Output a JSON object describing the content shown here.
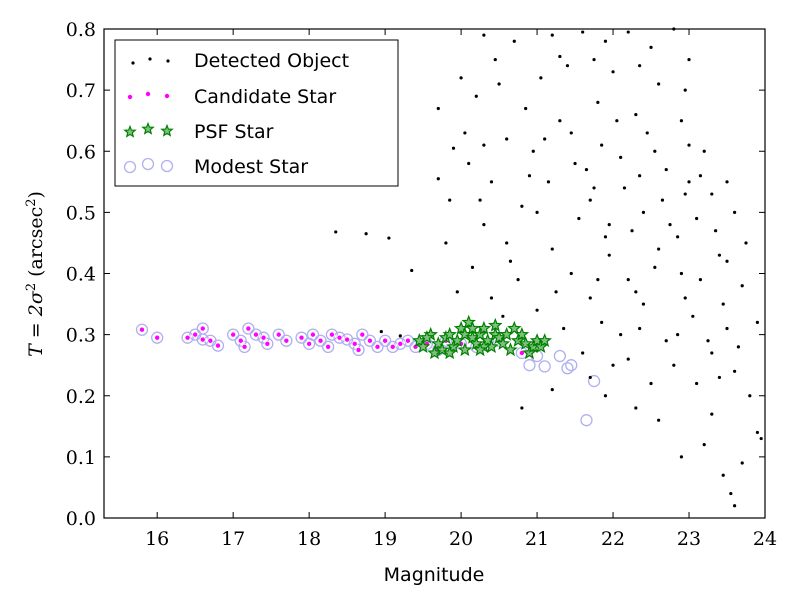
{
  "chart_data": {
    "type": "scatter",
    "xlabel": "Magnitude",
    "ylabel_prefix": "T = 2σ",
    "ylabel_unit": "(arcsec",
    "ylabel_suffix": ")",
    "xlim": [
      15.3,
      24.0
    ],
    "ylim": [
      0.0,
      0.8
    ],
    "xticks": [
      "16",
      "17",
      "18",
      "19",
      "20",
      "21",
      "22",
      "23",
      "24"
    ],
    "yticks": [
      "0.0",
      "0.1",
      "0.2",
      "0.3",
      "0.4",
      "0.5",
      "0.6",
      "0.7",
      "0.8"
    ],
    "grid": false,
    "legend": "top-left",
    "colors": {
      "detected": "#000000",
      "candidate": "#ff00ff",
      "psf_star": "#008000",
      "modest": "#b0b0f0"
    },
    "series": [
      {
        "name": "Detected Object",
        "marker": "dot",
        "points": [
          [
            18.35,
            0.468
          ],
          [
            18.75,
            0.465
          ],
          [
            19.05,
            0.458
          ],
          [
            19.35,
            0.405
          ],
          [
            19.7,
            0.555
          ],
          [
            19.9,
            0.605
          ],
          [
            19.2,
            0.298
          ],
          [
            18.95,
            0.305
          ],
          [
            20.3,
            0.79
          ],
          [
            20.7,
            0.78
          ],
          [
            21.2,
            0.79
          ],
          [
            21.6,
            0.795
          ],
          [
            21.9,
            0.78
          ],
          [
            22.2,
            0.795
          ],
          [
            22.5,
            0.77
          ],
          [
            22.8,
            0.8
          ],
          [
            21.05,
            0.72
          ],
          [
            21.4,
            0.74
          ],
          [
            22.0,
            0.73
          ],
          [
            22.6,
            0.71
          ],
          [
            23.0,
            0.75
          ],
          [
            21.3,
            0.65
          ],
          [
            21.8,
            0.68
          ],
          [
            22.3,
            0.66
          ],
          [
            22.9,
            0.65
          ],
          [
            23.2,
            0.6
          ],
          [
            23.5,
            0.55
          ],
          [
            23.6,
            0.5
          ],
          [
            23.3,
            0.53
          ],
          [
            20.85,
            0.67
          ],
          [
            20.5,
            0.71
          ],
          [
            20.2,
            0.69
          ],
          [
            20.1,
            0.58
          ],
          [
            20.4,
            0.55
          ],
          [
            20.9,
            0.56
          ],
          [
            21.5,
            0.58
          ],
          [
            22.1,
            0.59
          ],
          [
            22.7,
            0.57
          ],
          [
            21.0,
            0.5
          ],
          [
            21.7,
            0.52
          ],
          [
            22.4,
            0.5
          ],
          [
            23.1,
            0.49
          ],
          [
            20.3,
            0.48
          ],
          [
            20.6,
            0.45
          ],
          [
            21.2,
            0.44
          ],
          [
            21.9,
            0.46
          ],
          [
            22.6,
            0.44
          ],
          [
            23.4,
            0.43
          ],
          [
            20.15,
            0.41
          ],
          [
            20.75,
            0.39
          ],
          [
            21.45,
            0.4
          ],
          [
            22.2,
            0.39
          ],
          [
            22.9,
            0.4
          ],
          [
            23.7,
            0.38
          ],
          [
            20.4,
            0.36
          ],
          [
            21.0,
            0.34
          ],
          [
            21.7,
            0.36
          ],
          [
            22.4,
            0.35
          ],
          [
            23.05,
            0.33
          ],
          [
            23.5,
            0.31
          ],
          [
            23.9,
            0.32
          ],
          [
            22.1,
            0.3
          ],
          [
            22.7,
            0.29
          ],
          [
            23.3,
            0.27
          ],
          [
            23.6,
            0.24
          ],
          [
            23.8,
            0.2
          ],
          [
            23.95,
            0.13
          ],
          [
            23.7,
            0.09
          ],
          [
            23.45,
            0.07
          ],
          [
            23.2,
            0.12
          ],
          [
            22.9,
            0.1
          ],
          [
            22.6,
            0.16
          ],
          [
            22.3,
            0.18
          ],
          [
            21.9,
            0.2
          ],
          [
            21.7,
            0.23
          ],
          [
            21.2,
            0.21
          ],
          [
            20.8,
            0.18
          ],
          [
            22.0,
            0.25
          ],
          [
            22.5,
            0.22
          ],
          [
            23.1,
            0.22
          ],
          [
            23.6,
            0.02
          ],
          [
            23.55,
            0.04
          ],
          [
            21.3,
            0.755
          ],
          [
            20.6,
            0.62
          ],
          [
            21.85,
            0.61
          ],
          [
            22.45,
            0.63
          ],
          [
            23.0,
            0.61
          ],
          [
            23.75,
            0.45
          ],
          [
            20.25,
            0.52
          ],
          [
            20.8,
            0.51
          ],
          [
            21.55,
            0.49
          ],
          [
            22.25,
            0.47
          ],
          [
            22.85,
            0.46
          ],
          [
            23.5,
            0.42
          ],
          [
            19.8,
            0.45
          ],
          [
            19.95,
            0.37
          ],
          [
            20.05,
            0.63
          ],
          [
            19.7,
            0.67
          ],
          [
            21.1,
            0.62
          ],
          [
            21.65,
            0.57
          ],
          [
            22.15,
            0.54
          ],
          [
            22.65,
            0.52
          ],
          [
            23.15,
            0.56
          ],
          [
            20.55,
            0.33
          ],
          [
            21.35,
            0.31
          ],
          [
            21.85,
            0.32
          ],
          [
            22.35,
            0.31
          ],
          [
            22.85,
            0.3
          ],
          [
            23.25,
            0.29
          ],
          [
            23.65,
            0.28
          ],
          [
            21.6,
            0.27
          ],
          [
            22.2,
            0.26
          ],
          [
            22.8,
            0.25
          ],
          [
            23.4,
            0.23
          ],
          [
            23.9,
            0.14
          ],
          [
            23.3,
            0.17
          ],
          [
            21.95,
            0.43
          ],
          [
            22.55,
            0.41
          ],
          [
            23.15,
            0.39
          ],
          [
            20.65,
            0.42
          ],
          [
            21.25,
            0.37
          ],
          [
            21.8,
            0.39
          ],
          [
            22.3,
            0.37
          ],
          [
            22.95,
            0.36
          ],
          [
            23.45,
            0.35
          ],
          [
            20.95,
            0.6
          ],
          [
            21.45,
            0.63
          ],
          [
            22.05,
            0.65
          ],
          [
            22.55,
            0.6
          ],
          [
            23.0,
            0.55
          ],
          [
            21.15,
            0.55
          ],
          [
            21.75,
            0.54
          ],
          [
            22.35,
            0.56
          ],
          [
            22.95,
            0.53
          ],
          [
            20.45,
            0.75
          ],
          [
            21.75,
            0.75
          ],
          [
            22.35,
            0.74
          ],
          [
            22.95,
            0.7
          ],
          [
            20.0,
            0.72
          ],
          [
            19.85,
            0.52
          ],
          [
            20.3,
            0.61
          ],
          [
            21.95,
            0.48
          ],
          [
            22.75,
            0.48
          ],
          [
            23.35,
            0.47
          ]
        ]
      },
      {
        "name": "Candidate Star",
        "marker": "circle",
        "points": [
          [
            15.8,
            0.308
          ],
          [
            16.0,
            0.295
          ],
          [
            16.4,
            0.295
          ],
          [
            16.5,
            0.3
          ],
          [
            16.6,
            0.31
          ],
          [
            16.7,
            0.29
          ],
          [
            16.8,
            0.282
          ],
          [
            16.6,
            0.292
          ],
          [
            17.0,
            0.3
          ],
          [
            17.1,
            0.29
          ],
          [
            17.15,
            0.28
          ],
          [
            17.2,
            0.31
          ],
          [
            17.3,
            0.3
          ],
          [
            17.4,
            0.295
          ],
          [
            17.45,
            0.285
          ],
          [
            17.6,
            0.3
          ],
          [
            17.7,
            0.29
          ],
          [
            17.9,
            0.295
          ],
          [
            18.0,
            0.285
          ],
          [
            18.05,
            0.3
          ],
          [
            18.15,
            0.29
          ],
          [
            18.25,
            0.28
          ],
          [
            18.3,
            0.3
          ],
          [
            18.4,
            0.295
          ],
          [
            18.5,
            0.292
          ],
          [
            18.6,
            0.285
          ],
          [
            18.65,
            0.275
          ],
          [
            18.7,
            0.3
          ],
          [
            18.8,
            0.29
          ],
          [
            18.9,
            0.28
          ],
          [
            19.0,
            0.29
          ],
          [
            19.1,
            0.28
          ],
          [
            19.2,
            0.285
          ],
          [
            19.3,
            0.29
          ],
          [
            19.4,
            0.28
          ],
          [
            19.55,
            0.285
          ],
          [
            19.7,
            0.275
          ],
          [
            19.8,
            0.29
          ],
          [
            20.0,
            0.285
          ],
          [
            20.2,
            0.28
          ],
          [
            20.5,
            0.29
          ],
          [
            20.8,
            0.27
          ]
        ]
      },
      {
        "name": "PSF Star",
        "marker": "star",
        "points": [
          [
            19.45,
            0.29
          ],
          [
            19.5,
            0.28
          ],
          [
            19.6,
            0.3
          ],
          [
            19.7,
            0.285
          ],
          [
            19.75,
            0.275
          ],
          [
            19.8,
            0.295
          ],
          [
            19.85,
            0.3
          ],
          [
            19.9,
            0.28
          ],
          [
            19.95,
            0.29
          ],
          [
            20.0,
            0.31
          ],
          [
            20.05,
            0.3
          ],
          [
            20.1,
            0.32
          ],
          [
            20.15,
            0.295
          ],
          [
            20.2,
            0.285
          ],
          [
            20.25,
            0.3
          ],
          [
            20.3,
            0.31
          ],
          [
            20.35,
            0.29
          ],
          [
            20.4,
            0.28
          ],
          [
            20.45,
            0.3
          ],
          [
            20.5,
            0.295
          ],
          [
            20.55,
            0.285
          ],
          [
            20.6,
            0.3
          ],
          [
            20.7,
            0.31
          ],
          [
            20.75,
            0.29
          ],
          [
            20.8,
            0.3
          ],
          [
            20.85,
            0.285
          ],
          [
            20.9,
            0.27
          ],
          [
            20.95,
            0.28
          ],
          [
            21.0,
            0.29
          ],
          [
            21.05,
            0.28
          ],
          [
            19.55,
            0.295
          ],
          [
            19.65,
            0.27
          ],
          [
            20.05,
            0.275
          ],
          [
            20.3,
            0.28
          ],
          [
            20.65,
            0.275
          ],
          [
            20.15,
            0.31
          ],
          [
            19.85,
            0.27
          ],
          [
            20.45,
            0.315
          ],
          [
            21.1,
            0.29
          ],
          [
            20.25,
            0.275
          ]
        ]
      },
      {
        "name": "Modest Star",
        "marker": "ring",
        "points": [
          [
            15.8,
            0.308
          ],
          [
            16.0,
            0.295
          ],
          [
            16.4,
            0.295
          ],
          [
            16.5,
            0.3
          ],
          [
            16.6,
            0.31
          ],
          [
            16.7,
            0.29
          ],
          [
            16.8,
            0.282
          ],
          [
            16.6,
            0.292
          ],
          [
            17.0,
            0.3
          ],
          [
            17.1,
            0.29
          ],
          [
            17.15,
            0.28
          ],
          [
            17.2,
            0.31
          ],
          [
            17.3,
            0.3
          ],
          [
            17.4,
            0.295
          ],
          [
            17.45,
            0.285
          ],
          [
            17.6,
            0.3
          ],
          [
            17.7,
            0.29
          ],
          [
            17.9,
            0.295
          ],
          [
            18.0,
            0.285
          ],
          [
            18.05,
            0.3
          ],
          [
            18.15,
            0.29
          ],
          [
            18.25,
            0.28
          ],
          [
            18.3,
            0.3
          ],
          [
            18.4,
            0.295
          ],
          [
            18.5,
            0.292
          ],
          [
            18.6,
            0.285
          ],
          [
            18.65,
            0.275
          ],
          [
            18.7,
            0.3
          ],
          [
            18.8,
            0.29
          ],
          [
            18.9,
            0.28
          ],
          [
            19.0,
            0.29
          ],
          [
            19.1,
            0.28
          ],
          [
            19.2,
            0.285
          ],
          [
            19.3,
            0.29
          ],
          [
            19.4,
            0.28
          ],
          [
            19.55,
            0.285
          ],
          [
            19.7,
            0.275
          ],
          [
            19.8,
            0.29
          ],
          [
            20.0,
            0.285
          ],
          [
            20.2,
            0.28
          ],
          [
            20.5,
            0.29
          ],
          [
            20.8,
            0.27
          ],
          [
            20.9,
            0.25
          ],
          [
            21.1,
            0.248
          ],
          [
            21.4,
            0.245
          ],
          [
            21.45,
            0.25
          ],
          [
            21.75,
            0.224
          ],
          [
            21.65,
            0.16
          ],
          [
            21.3,
            0.265
          ],
          [
            21.0,
            0.265
          ]
        ]
      }
    ]
  }
}
